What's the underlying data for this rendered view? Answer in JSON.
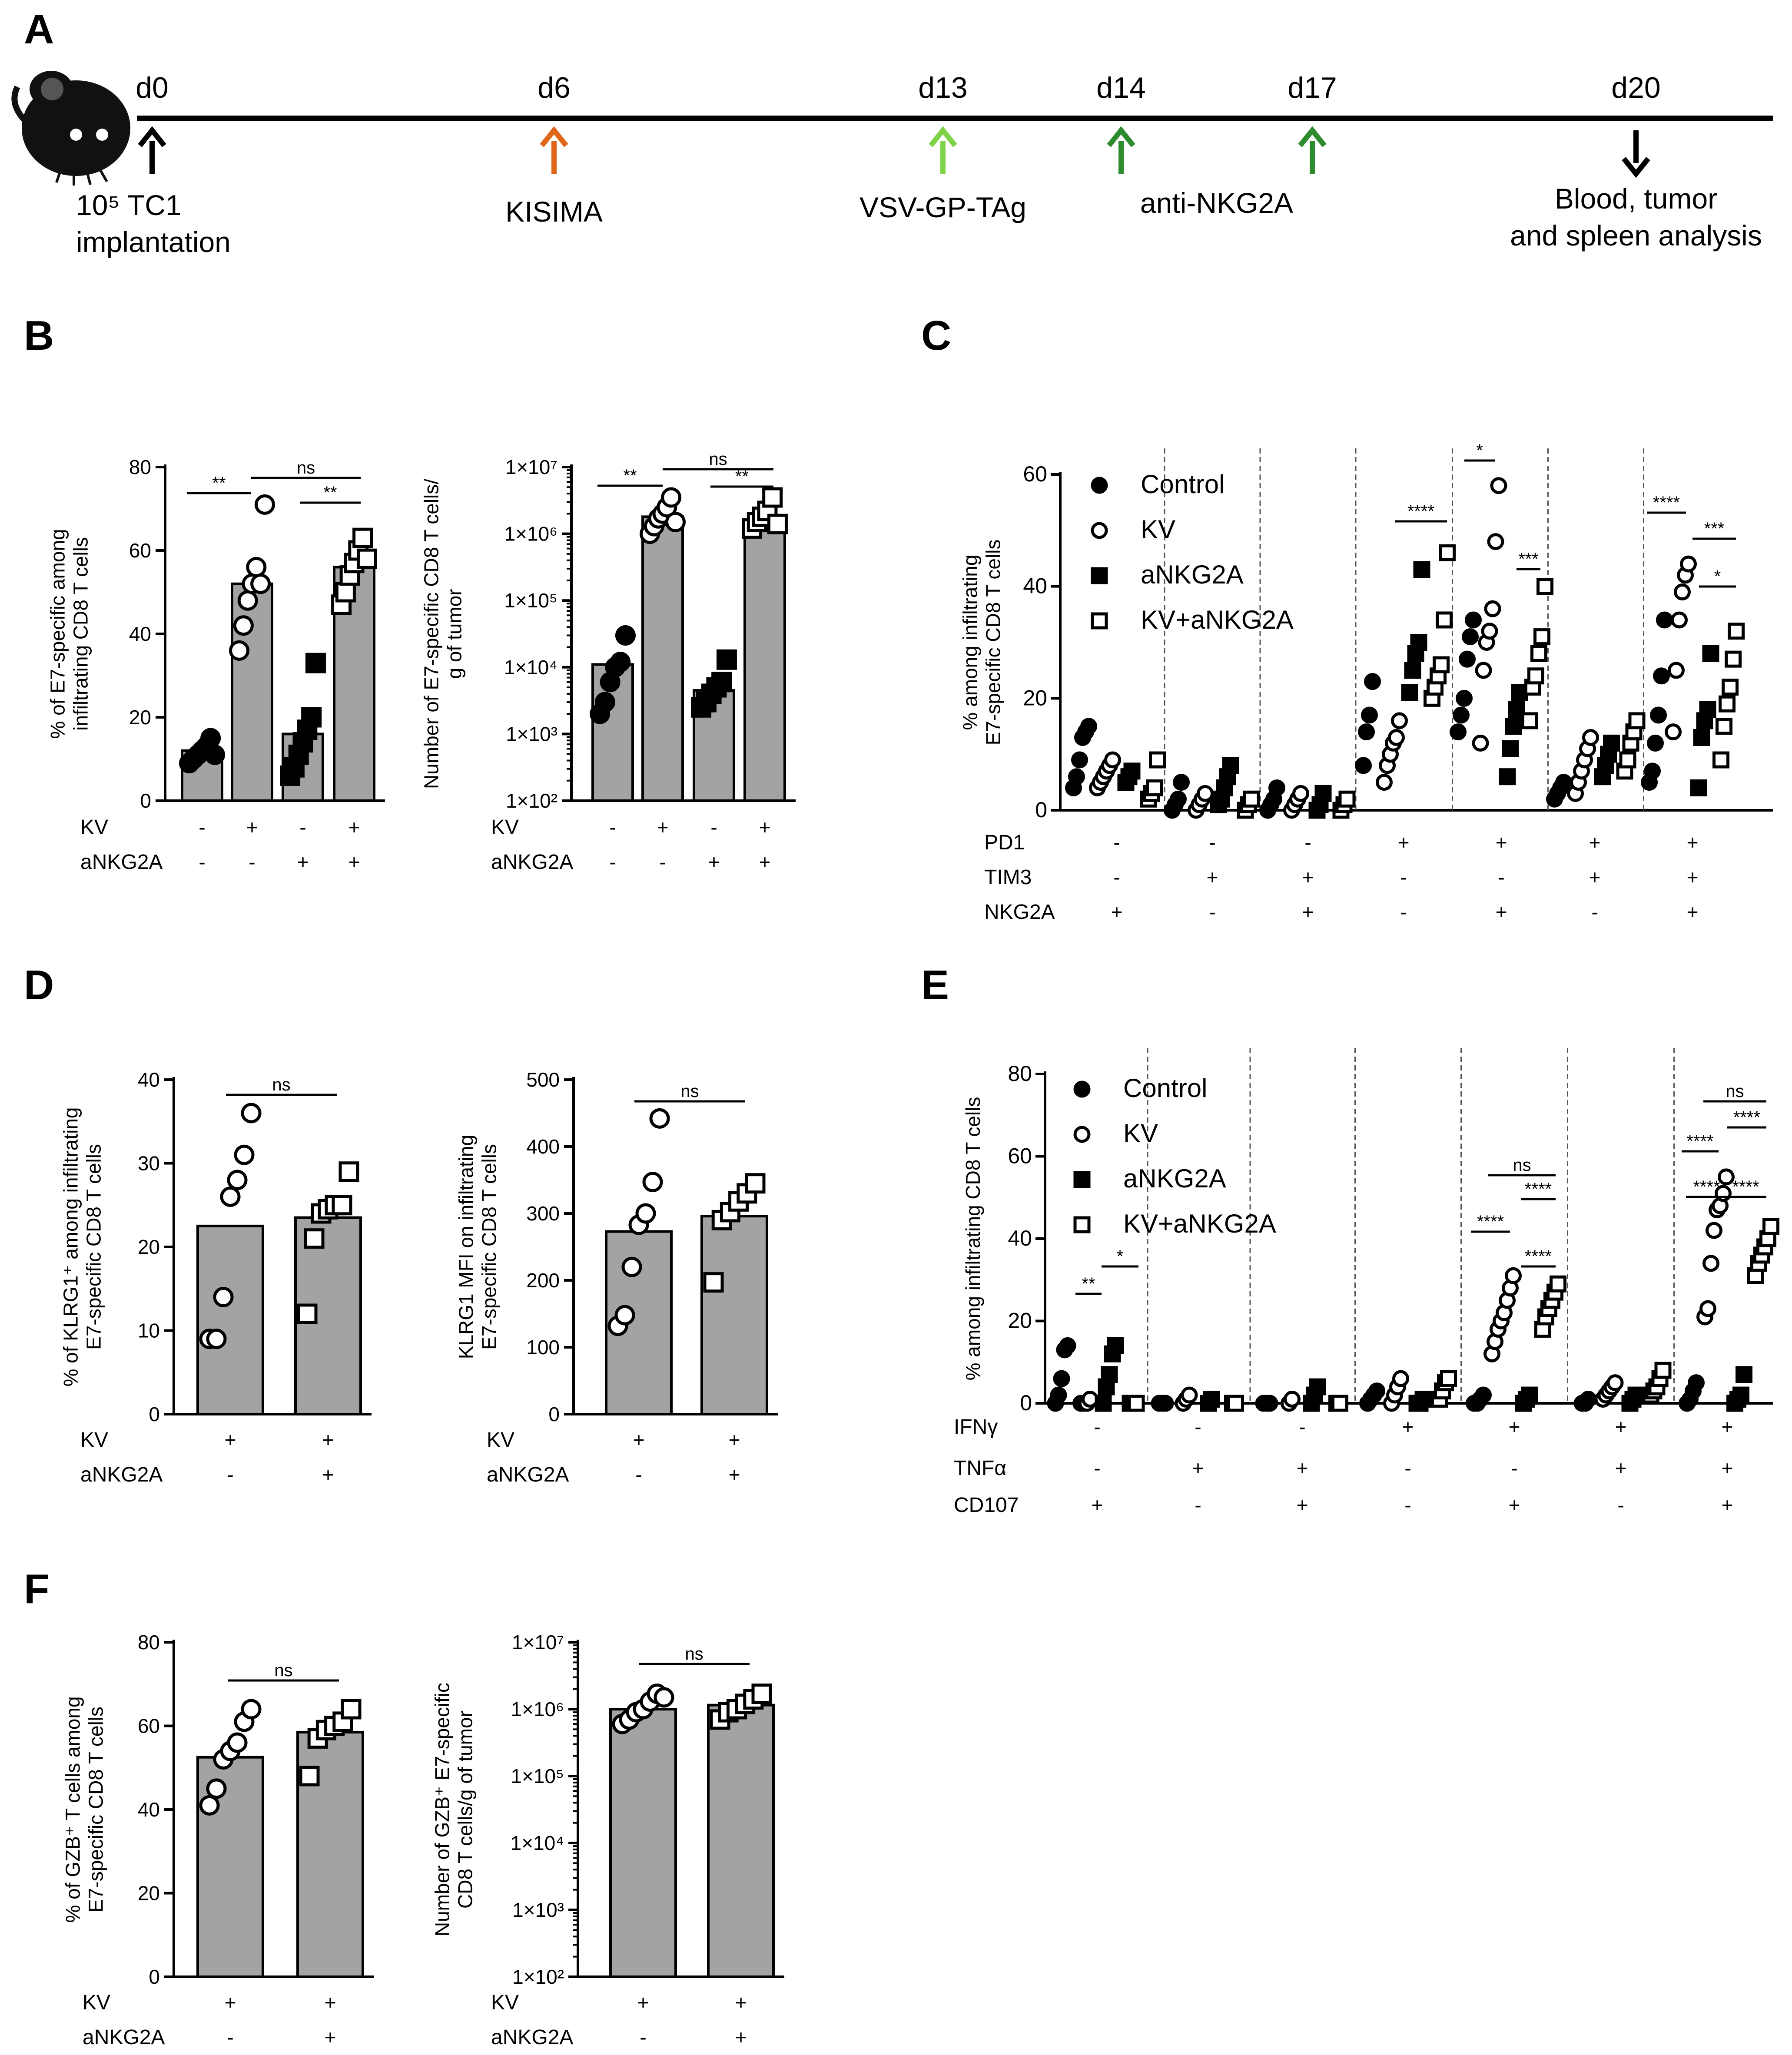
{
  "panel_letters": {
    "A": "A",
    "B": "B",
    "C": "C",
    "D": "D",
    "E": "E",
    "F": "F"
  },
  "timeline": {
    "days": [
      "d0",
      "d6",
      "d13",
      "d14",
      "d17",
      "d20"
    ],
    "events": [
      "10⁵ TC1",
      "implantation",
      "KISIMA",
      "VSV-GP-TAg",
      "anti-NKG2A",
      "Blood, tumor",
      "and spleen analysis"
    ],
    "colors": [
      "#000000",
      "#e0661b",
      "#7ed348",
      "#2e8b2e",
      "#2e8b2e",
      "#000000"
    ]
  },
  "row_labels": {
    "kv": "KV",
    "ankg2a": "aNKG2A",
    "pd1": "PD1",
    "tim3": "TIM3",
    "nkg2a": "NKG2A",
    "ifng": "IFNγ",
    "tnfa": "TNFα",
    "cd107": "CD107"
  },
  "legend": [
    "Control",
    "KV",
    "aNKG2A",
    "KV+aNKG2A"
  ],
  "ylabels": {
    "b1": [
      "% of E7-specific among",
      "infiltrating CD8 T cells"
    ],
    "b2": [
      "Number of E7-specific CD8 T cells/",
      "g of tumor"
    ],
    "c": [
      "% among infiltrating",
      "E7-specific CD8 T cells"
    ],
    "d1": [
      "% of KLRG1⁺ among infiltrating",
      "E7-specific CD8 T cells"
    ],
    "d2": [
      "KLRG1 MFI on infiltrating",
      "E7-specific CD8 T cells"
    ],
    "e": [
      "% among infiltrating CD8 T cells"
    ],
    "f1": [
      "% of GZB⁺ T cells among",
      "E7-specific CD8 T cells"
    ],
    "f2": [
      "Number of GZB⁺ E7-specific",
      "CD8 T cells/g of tumor"
    ]
  },
  "chart_data": [
    {
      "id": "B-left",
      "type": "bar",
      "categories": [
        "Control",
        "KV",
        "aNKG2A",
        "KV+aNKG2A"
      ],
      "values": [
        12,
        52,
        16,
        56
      ],
      "ylim": [
        0,
        80
      ],
      "yticks": [
        "0",
        "20",
        "40",
        "60",
        "80"
      ],
      "points": [
        [
          9,
          10,
          11,
          12,
          13,
          15,
          11
        ],
        [
          36,
          42,
          48,
          52,
          56,
          52,
          71
        ],
        [
          6,
          8,
          11,
          14,
          17,
          20,
          33
        ],
        [
          47,
          50,
          54,
          57,
          60,
          63,
          58
        ]
      ],
      "conditions": {
        "KV": [
          "-",
          "+",
          "-",
          "+"
        ],
        "aNKG2A": [
          "-",
          "-",
          "+",
          "+"
        ]
      },
      "significance": [
        "**",
        "ns",
        "**"
      ]
    },
    {
      "id": "B-right",
      "type": "bar",
      "scale": "log",
      "categories": [
        "Control",
        "KV",
        "aNKG2A",
        "KV+aNKG2A"
      ],
      "values": [
        11000,
        1800000,
        4500,
        1600000
      ],
      "ylim": [
        100,
        10000000
      ],
      "yticks": [
        "1×10²",
        "1×10³",
        "1×10⁴",
        "1×10⁵",
        "1×10⁶",
        "1×10⁷"
      ],
      "points": [
        [
          2000,
          3000,
          6000,
          10000,
          12000,
          30000
        ],
        [
          1000000,
          1300000,
          1700000,
          2000000,
          2500000,
          3500000,
          1500000
        ],
        [
          2500,
          3000,
          4000,
          5000,
          6000,
          13000
        ],
        [
          1200000,
          1500000,
          1800000,
          2200000,
          3500000,
          1400000
        ]
      ],
      "conditions": {
        "KV": [
          "-",
          "+",
          "-",
          "+"
        ],
        "aNKG2A": [
          "-",
          "-",
          "+",
          "+"
        ]
      },
      "significance": [
        "**",
        "ns",
        "**"
      ]
    },
    {
      "id": "C",
      "type": "scatter",
      "ylim": [
        0,
        60
      ],
      "yticks": [
        "0",
        "20",
        "40",
        "60"
      ],
      "groups": [
        {
          "PD1": "-",
          "TIM3": "-",
          "NKG2A": "+",
          "control": [
            4,
            6,
            9,
            13,
            14,
            15
          ],
          "kv": [
            4,
            5,
            6,
            7,
            8,
            9
          ],
          "ankg2a": [
            5,
            6,
            7
          ],
          "kvank": [
            2,
            3,
            4,
            9
          ]
        },
        {
          "PD1": "-",
          "TIM3": "+",
          "NKG2A": "-",
          "control": [
            0,
            1,
            2,
            5
          ],
          "kv": [
            0,
            1,
            2,
            3
          ],
          "ankg2a": [
            1,
            2,
            4,
            6,
            8
          ],
          "kvank": [
            0,
            1,
            2
          ]
        },
        {
          "PD1": "-",
          "TIM3": "+",
          "NKG2A": "+",
          "control": [
            0,
            1,
            2,
            4
          ],
          "kv": [
            0,
            1,
            2,
            3
          ],
          "ankg2a": [
            0,
            1,
            3
          ],
          "kvank": [
            0,
            1,
            2
          ]
        },
        {
          "PD1": "+",
          "TIM3": "-",
          "NKG2A": "-",
          "control": [
            8,
            14,
            17,
            23
          ],
          "kv": [
            5,
            8,
            10,
            12,
            13,
            16
          ],
          "ankg2a": [
            21,
            25,
            28,
            30,
            43
          ],
          "kvank": [
            20,
            22,
            24,
            26,
            34,
            46
          ]
        },
        {
          "PD1": "+",
          "TIM3": "-",
          "NKG2A": "+",
          "control": [
            14,
            17,
            20,
            27,
            31,
            34
          ],
          "kv": [
            12,
            25,
            30,
            32,
            36,
            48,
            58
          ],
          "ankg2a": [
            6,
            11,
            15,
            18,
            21
          ],
          "kvank": [
            16,
            22,
            24,
            28,
            31,
            40
          ]
        },
        {
          "PD1": "+",
          "TIM3": "+",
          "NKG2A": "-",
          "control": [
            2,
            3,
            4,
            5
          ],
          "kv": [
            3,
            5,
            7,
            9,
            11,
            13
          ],
          "ankg2a": [
            6,
            8,
            10,
            12
          ],
          "kvank": [
            7,
            9,
            12,
            14,
            16
          ]
        },
        {
          "PD1": "+",
          "TIM3": "+",
          "NKG2A": "+",
          "control": [
            5,
            7,
            12,
            17,
            24,
            34
          ],
          "kv": [
            14,
            25,
            34,
            39,
            42,
            44
          ],
          "ankg2a": [
            4,
            13,
            16,
            18,
            28
          ],
          "kvank": [
            9,
            15,
            19,
            22,
            27,
            32
          ]
        }
      ],
      "significance": [
        "****",
        "*",
        "***",
        "****",
        "***",
        "*"
      ]
    },
    {
      "id": "D-left",
      "type": "bar",
      "categories": [
        "KV",
        "KV+aNKG2A"
      ],
      "values": [
        22.5,
        23.5
      ],
      "ylim": [
        0,
        40
      ],
      "yticks": [
        "0",
        "10",
        "20",
        "30",
        "40"
      ],
      "points": [
        [
          9,
          9,
          14,
          26,
          28,
          31,
          36
        ],
        [
          12,
          21,
          24,
          24.5,
          25,
          25,
          29
        ]
      ],
      "conditions": {
        "KV": [
          "+",
          "+"
        ],
        "aNKG2A": [
          "-",
          "+"
        ]
      },
      "significance": [
        "ns"
      ]
    },
    {
      "id": "D-right",
      "type": "bar",
      "categories": [
        "KV",
        "KV+aNKG2A"
      ],
      "values": [
        273,
        296
      ],
      "ylim": [
        0,
        500
      ],
      "yticks": [
        "0",
        "100",
        "200",
        "300",
        "400",
        "500"
      ],
      "points": [
        [
          132,
          148,
          220,
          283,
          300,
          347,
          442
        ],
        [
          197,
          290,
          302,
          318,
          330,
          345
        ]
      ],
      "conditions": {
        "KV": [
          "+",
          "+"
        ],
        "aNKG2A": [
          "-",
          "+"
        ]
      },
      "significance": [
        "ns"
      ]
    },
    {
      "id": "E",
      "type": "scatter",
      "ylim": [
        0,
        80
      ],
      "yticks": [
        "0",
        "20",
        "40",
        "60",
        "80"
      ],
      "groups": [
        {
          "IFNy": "-",
          "TNFa": "-",
          "CD107": "+",
          "control": [
            0,
            2,
            6,
            13,
            14
          ],
          "kv": [
            0,
            0,
            0,
            1
          ],
          "ankg2a": [
            0,
            4,
            7,
            12,
            14
          ],
          "kvank": [
            0,
            0,
            0
          ]
        },
        {
          "IFNy": "-",
          "TNFa": "+",
          "CD107": "-",
          "control": [
            0,
            0,
            0
          ],
          "kv": [
            0,
            1,
            2
          ],
          "ankg2a": [
            0,
            1
          ],
          "kvank": [
            0,
            0
          ]
        },
        {
          "IFNy": "-",
          "TNFa": "+",
          "CD107": "+",
          "control": [
            0,
            0,
            0
          ],
          "kv": [
            0,
            1
          ],
          "ankg2a": [
            0,
            2,
            4
          ],
          "kvank": [
            0,
            0
          ]
        },
        {
          "IFNy": "+",
          "TNFa": "-",
          "CD107": "-",
          "control": [
            0,
            1,
            2,
            3
          ],
          "kv": [
            0,
            2,
            4,
            6
          ],
          "ankg2a": [
            0,
            0,
            1
          ],
          "kvank": [
            1,
            3,
            5,
            6
          ]
        },
        {
          "IFNy": "+",
          "TNFa": "-",
          "CD107": "+",
          "control": [
            0,
            0,
            1,
            2
          ],
          "kv": [
            12,
            15,
            18,
            20,
            22,
            25,
            28,
            31
          ],
          "ankg2a": [
            0,
            1,
            2
          ],
          "kvank": [
            18,
            21,
            23,
            25,
            27,
            29
          ]
        },
        {
          "IFNy": "+",
          "TNFa": "+",
          "CD107": "-",
          "control": [
            0,
            0,
            1
          ],
          "kv": [
            1,
            2,
            3,
            4,
            5
          ],
          "ankg2a": [
            0,
            1,
            2
          ],
          "kvank": [
            2,
            3,
            4,
            6,
            8
          ]
        },
        {
          "IFNy": "+",
          "TNFa": "+",
          "CD107": "+",
          "control": [
            0,
            1,
            3,
            5
          ],
          "kv": [
            21,
            23,
            34,
            42,
            47,
            48,
            51,
            55
          ],
          "ankg2a": [
            0,
            1,
            2,
            7
          ],
          "kvank": [
            31,
            34,
            36,
            38,
            40,
            43
          ]
        }
      ],
      "significance": [
        "**",
        "*",
        "****",
        "ns",
        "****",
        "****",
        "****",
        "ns",
        "****",
        "****",
        "****",
        "****"
      ]
    },
    {
      "id": "F-left",
      "type": "bar",
      "categories": [
        "KV",
        "KV+aNKG2A"
      ],
      "values": [
        52.5,
        58.5
      ],
      "ylim": [
        0,
        80
      ],
      "yticks": [
        "0",
        "20",
        "40",
        "60",
        "80"
      ],
      "points": [
        [
          41,
          45,
          52,
          54,
          56,
          61,
          64
        ],
        [
          48,
          57,
          59,
          60,
          61,
          64
        ]
      ],
      "conditions": {
        "KV": [
          "+",
          "+"
        ],
        "aNKG2A": [
          "-",
          "+"
        ]
      },
      "significance": [
        "ns"
      ]
    },
    {
      "id": "F-right",
      "type": "bar",
      "scale": "log",
      "categories": [
        "KV",
        "KV+aNKG2A"
      ],
      "values": [
        1000000,
        1150000
      ],
      "ylim": [
        100,
        10000000
      ],
      "yticks": [
        "1×10²",
        "1×10³",
        "1×10⁴",
        "1×10⁵",
        "1×10⁶",
        "1×10⁷"
      ],
      "points": [
        [
          600000,
          700000,
          900000,
          1000000,
          1300000,
          1700000,
          1500000
        ],
        [
          700000,
          900000,
          1000000,
          1200000,
          1400000,
          1700000
        ]
      ],
      "conditions": {
        "KV": [
          "+",
          "+"
        ],
        "aNKG2A": [
          "-",
          "+"
        ]
      },
      "significance": [
        "ns"
      ]
    }
  ]
}
